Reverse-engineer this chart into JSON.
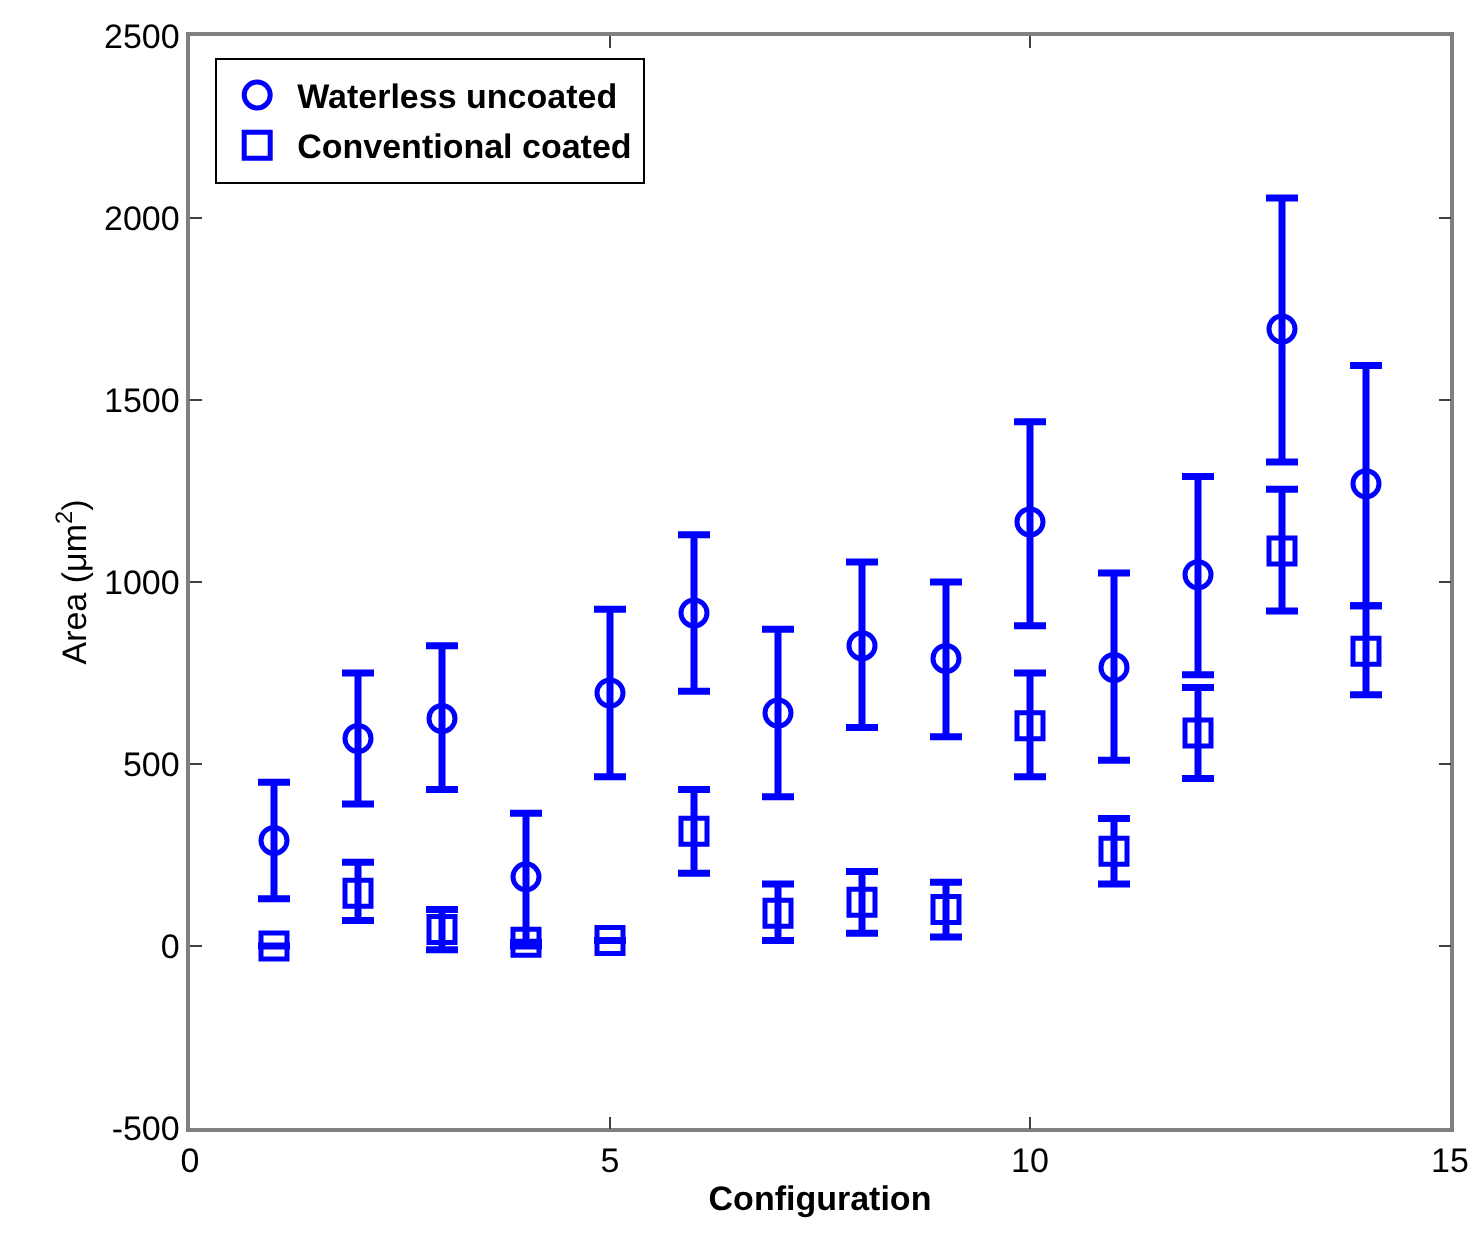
{
  "chart_data": {
    "type": "scatter",
    "xlabel": "Configuration",
    "ylabel": "Area (μm$^{2}$)",
    "x": [
      1,
      2,
      3,
      4,
      5,
      6,
      7,
      8,
      9,
      10,
      11,
      12,
      13,
      14
    ],
    "xlim": [
      0,
      15
    ],
    "xticks": [
      0,
      5,
      10,
      15
    ],
    "ylim": [
      -500,
      2500
    ],
    "yticks": [
      -500,
      0,
      500,
      1000,
      1500,
      2000,
      2500
    ],
    "legend": "top left",
    "series": [
      {
        "name": "Waterless uncoated",
        "color": "#0000ff",
        "marker": "circle",
        "values": [
          290,
          570,
          625,
          190,
          695,
          915,
          640,
          825,
          790,
          1165,
          765,
          1020,
          1695,
          1270
        ],
        "errors": [
          [
            130,
            450
          ],
          [
            390,
            750
          ],
          [
            430,
            825
          ],
          [
            0,
            365
          ],
          [
            465,
            925
          ],
          [
            700,
            1130
          ],
          [
            410,
            870
          ],
          [
            600,
            1055
          ],
          [
            575,
            1000
          ],
          [
            880,
            1440
          ],
          [
            510,
            1025
          ],
          [
            745,
            1290
          ],
          [
            1330,
            2055
          ],
          [
            935,
            1595
          ]
        ]
      },
      {
        "name": "Conventional coated",
        "color": "#0000ff",
        "marker": "square",
        "values": [
          0,
          145,
          45,
          10,
          15,
          315,
          90,
          120,
          100,
          605,
          260,
          585,
          1085,
          810
        ],
        "errors": [
          null,
          [
            70,
            230
          ],
          [
            -10,
            100
          ],
          null,
          null,
          [
            200,
            430
          ],
          [
            15,
            170
          ],
          [
            35,
            205
          ],
          [
            25,
            175
          ],
          [
            465,
            750
          ],
          [
            170,
            350
          ],
          [
            460,
            710
          ],
          [
            920,
            1255
          ],
          [
            690,
            935
          ]
        ]
      }
    ]
  }
}
